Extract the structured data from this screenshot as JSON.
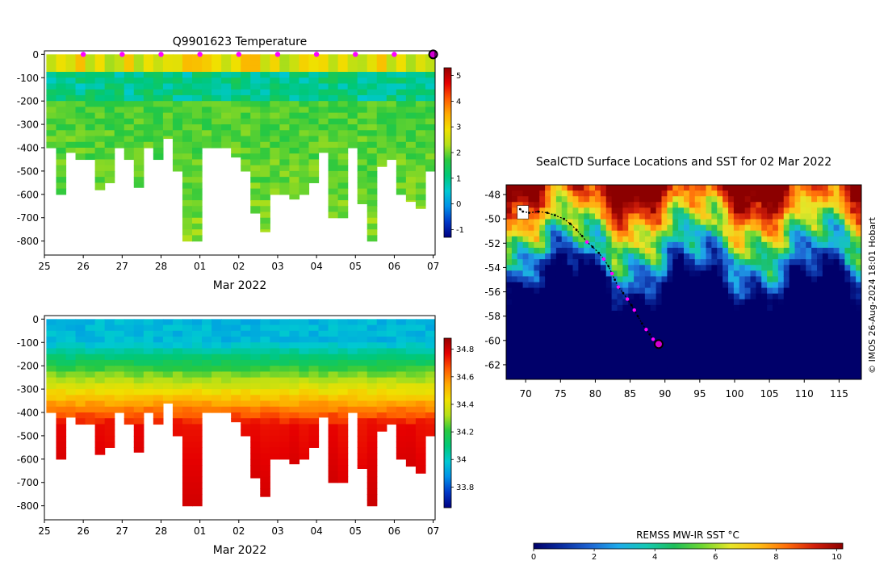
{
  "chart_data": [
    {
      "type": "heatmap",
      "title": "Q9901623  Temperature",
      "xlabel": "Mar 2022",
      "ylabel": "",
      "x_tick_labels": [
        "25",
        "26",
        "27",
        "28",
        "01",
        "02",
        "03",
        "04",
        "05",
        "06",
        "07"
      ],
      "x_tick_days": [
        0,
        1,
        2,
        3,
        4,
        5,
        6,
        7,
        8,
        9,
        10
      ],
      "xlim_days": [
        0,
        10.05
      ],
      "y_ticks": [
        0,
        -100,
        -200,
        -300,
        -400,
        -500,
        -600,
        -700,
        -800
      ],
      "ylim": [
        -860,
        15
      ],
      "colorbar": {
        "range": [
          -1.3,
          5.3
        ],
        "ticks": [
          -1,
          0,
          1,
          2,
          3,
          4,
          5
        ]
      },
      "surface_marker_days": [
        1,
        2,
        3,
        4,
        5,
        6,
        7,
        8,
        9
      ],
      "current_position_day": 10,
      "profiles": {
        "start_day": 0.05,
        "spacing_days": 0.25,
        "max_depths": [
          400,
          600,
          420,
          450,
          450,
          580,
          550,
          400,
          450,
          570,
          400,
          450,
          360,
          500,
          800,
          800,
          400,
          400,
          400,
          440,
          500,
          680,
          760,
          600,
          600,
          620,
          600,
          550,
          420,
          700,
          700,
          400,
          640,
          800,
          480,
          450,
          600,
          630,
          660,
          500,
          400,
          380,
          420,
          380,
          400,
          410,
          520,
          560,
          650,
          400,
          500,
          420,
          600,
          480,
          440,
          440,
          650,
          600,
          680,
          400,
          410,
          440,
          480,
          450,
          600,
          620,
          400,
          420,
          590,
          400,
          670,
          520,
          580,
          530,
          500
        ]
      },
      "profile_stats": {
        "surface_temp": 2.8,
        "subsurface_temp": 1.0,
        "deep_temp": 1.8,
        "mixed_layer_depth": 85
      }
    },
    {
      "type": "heatmap",
      "title": "",
      "variable": "salinity",
      "xlabel": "Mar 2022",
      "ylabel": "",
      "x_tick_labels": [
        "25",
        "26",
        "27",
        "28",
        "01",
        "02",
        "03",
        "04",
        "05",
        "06",
        "07"
      ],
      "x_tick_days": [
        0,
        1,
        2,
        3,
        4,
        5,
        6,
        7,
        8,
        9,
        10
      ],
      "xlim_days": [
        0,
        10.05
      ],
      "y_ticks": [
        0,
        -100,
        -200,
        -300,
        -400,
        -500,
        -600,
        -700,
        -800
      ],
      "ylim": [
        -860,
        15
      ],
      "colorbar": {
        "range": [
          33.65,
          34.88
        ],
        "ticks": [
          33.8,
          34,
          34.2,
          34.4,
          34.6,
          34.8
        ]
      },
      "profile_stats": {
        "surface_salinity": 33.95,
        "deep_salinity": 34.75,
        "halocline_depth": 150
      }
    },
    {
      "type": "heatmap",
      "variable": "sea surface temperature map",
      "title": "SealCTD Surface Locations and SST for 02 Mar 2022",
      "x_tick_labels": [
        "70",
        "75",
        "80",
        "85",
        "90",
        "95",
        "100",
        "105",
        "110",
        "115"
      ],
      "x_ticks": [
        70,
        75,
        80,
        85,
        90,
        95,
        100,
        105,
        110,
        115
      ],
      "xlim": [
        67.2,
        118.2
      ],
      "y_tick_labels": [
        "-48",
        "-50",
        "-52",
        "-54",
        "-56",
        "-58",
        "-60",
        "-62"
      ],
      "y_ticks": [
        -48,
        -50,
        -52,
        -54,
        -56,
        -58,
        -60,
        -62
      ],
      "ylim": [
        -63.2,
        -47.2
      ],
      "colorbar": {
        "label": "REMSS MW-IR SST °C",
        "range": [
          0,
          10.2
        ],
        "ticks": [
          0,
          2,
          4,
          6,
          8,
          10
        ],
        "tick_labels": [
          "0",
          "2",
          "4",
          "6",
          "8",
          "10"
        ]
      },
      "credit": "© IMOS 26-Aug-2024 18:01 Hobart",
      "track_lon": [
        69.2,
        69.6,
        70.5,
        71.8,
        73.1,
        74.2,
        75.5,
        76.4,
        77.3,
        78.1,
        78.8,
        79.6,
        80.5,
        81.2,
        81.9,
        82.4,
        82.8,
        83.3,
        84.0,
        84.6,
        85.2,
        85.6,
        86.1,
        86.7,
        87.3,
        87.8,
        88.3,
        88.7,
        89.1
      ],
      "track_lat": [
        -49.2,
        -49.4,
        -49.5,
        -49.4,
        -49.5,
        -49.7,
        -50.0,
        -50.4,
        -50.9,
        -51.4,
        -51.9,
        -52.3,
        -52.8,
        -53.3,
        -53.9,
        -54.5,
        -55.0,
        -55.6,
        -56.1,
        -56.6,
        -57.1,
        -57.5,
        -58.0,
        -58.6,
        -59.1,
        -59.5,
        -59.9,
        -60.2,
        -60.3
      ],
      "surface_marker_index": [
        10,
        13,
        15,
        17,
        19,
        21,
        24,
        26
      ],
      "current_position": {
        "lon": 89.1,
        "lat": -60.3
      }
    }
  ],
  "palette": {
    "temp_ramp": [
      "#000080",
      "#0038c8",
      "#0090e8",
      "#00c8d2",
      "#00c878",
      "#28c840",
      "#b4e018",
      "#f0e000",
      "#ffaa00",
      "#ff5a00",
      "#e60000",
      "#960000"
    ],
    "sst_ramp": [
      "#00006a",
      "#0a2da0",
      "#1e64d2",
      "#1eaaeb",
      "#14c8b4",
      "#1ebe5a",
      "#6ed732",
      "#e6e628",
      "#ffbe14",
      "#ff6e0a",
      "#d21e0a",
      "#8c0000"
    ],
    "marker_magenta": "#ff00ff",
    "current_position_fill": "#d200d2"
  }
}
